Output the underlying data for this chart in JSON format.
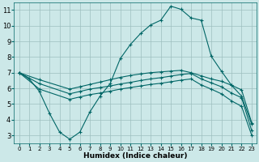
{
  "xlabel": "Humidex (Indice chaleur)",
  "bg_color": "#cce8e8",
  "grid_color": "#9dbfbf",
  "line_color": "#006666",
  "xlim": [
    -0.5,
    23.5
  ],
  "ylim": [
    2.5,
    11.5
  ],
  "xticks": [
    0,
    1,
    2,
    3,
    4,
    5,
    6,
    7,
    8,
    9,
    10,
    11,
    12,
    13,
    14,
    15,
    16,
    17,
    18,
    19,
    20,
    21,
    22,
    23
  ],
  "yticks": [
    3,
    4,
    5,
    6,
    7,
    8,
    9,
    10,
    11
  ],
  "line1_x": [
    0,
    1,
    2,
    3,
    4,
    5,
    6,
    7,
    8,
    9,
    10,
    11,
    12,
    13,
    14,
    15,
    16,
    17,
    18,
    19,
    20,
    21,
    22,
    23
  ],
  "line1_y": [
    7.0,
    6.6,
    5.8,
    4.4,
    3.2,
    2.75,
    3.2,
    4.5,
    5.5,
    6.3,
    7.9,
    8.8,
    9.5,
    10.05,
    10.35,
    11.25,
    11.05,
    10.5,
    10.35,
    8.05,
    7.1,
    6.2,
    5.5,
    3.7
  ],
  "line2_x": [
    0,
    2,
    5,
    6,
    7,
    8,
    9,
    10,
    11,
    12,
    13,
    14,
    15,
    16,
    17,
    18,
    19,
    20,
    21,
    22,
    23
  ],
  "line2_y": [
    7.0,
    6.55,
    5.95,
    6.1,
    6.25,
    6.4,
    6.55,
    6.7,
    6.82,
    6.92,
    7.0,
    7.05,
    7.1,
    7.15,
    7.0,
    6.8,
    6.6,
    6.45,
    6.2,
    5.9,
    3.8
  ],
  "line3_x": [
    0,
    2,
    5,
    6,
    7,
    8,
    9,
    10,
    11,
    12,
    13,
    14,
    15,
    16,
    17,
    18,
    19,
    20,
    21,
    22,
    23
  ],
  "line3_y": [
    7.0,
    6.3,
    5.65,
    5.8,
    5.95,
    6.05,
    6.15,
    6.28,
    6.38,
    6.5,
    6.6,
    6.68,
    6.78,
    6.88,
    6.95,
    6.6,
    6.35,
    6.1,
    5.7,
    5.4,
    3.3
  ],
  "line4_x": [
    0,
    2,
    5,
    6,
    7,
    8,
    9,
    10,
    11,
    12,
    13,
    14,
    15,
    16,
    17,
    18,
    19,
    20,
    21,
    22,
    23
  ],
  "line4_y": [
    7.0,
    5.95,
    5.3,
    5.45,
    5.6,
    5.7,
    5.82,
    5.95,
    6.05,
    6.15,
    6.25,
    6.32,
    6.42,
    6.52,
    6.6,
    6.22,
    5.95,
    5.65,
    5.2,
    4.85,
    3.0
  ]
}
